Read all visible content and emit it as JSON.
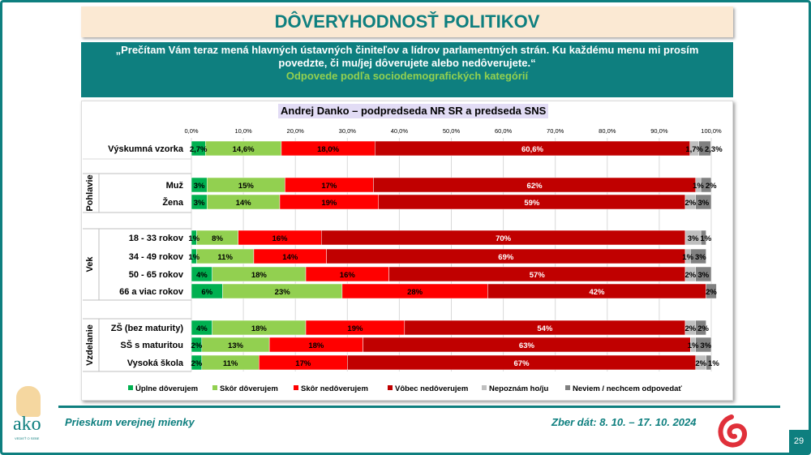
{
  "slide": {
    "title": "DÔVERYHODNOSŤ POLITIKOV",
    "question": "„Prečítam Vám teraz mená hlavných ústavných činiteľov a lídrov parlamentných strán. Ku každému menu mi prosím povedzte, či mu/jej dôverujete alebo nedôverujete.“",
    "subtitle": "Odpovede podľa sociodemografických kategórií",
    "footer_left": "Prieskum verejnej mienky",
    "footer_right": "Zber dát: 8. 10. – 17. 10. 2024",
    "page_number": "29",
    "logo_text": "ako",
    "logo_tagline": "VEDIEŤ O SEBE"
  },
  "chart_data": {
    "type": "bar",
    "orientation": "horizontal",
    "stacked": true,
    "title": "Andrej Danko – podpredseda NR SR a predseda SNS",
    "xlim": [
      0,
      100
    ],
    "xticks": [
      "0,0%",
      "10,0%",
      "20,0%",
      "30,0%",
      "40,0%",
      "50,0%",
      "60,0%",
      "70,0%",
      "80,0%",
      "90,0%",
      "100,0%"
    ],
    "legend_position": "bottom",
    "series": [
      {
        "name": "Úplne dôverujem",
        "color": "#00b050"
      },
      {
        "name": "Skôr dôverujem",
        "color": "#92d050"
      },
      {
        "name": "Skôr nedôverujem",
        "color": "#ff0000"
      },
      {
        "name": "Vôbec nedôverujem",
        "color": "#c00000"
      },
      {
        "name": "Nepoznám ho/ju",
        "color": "#bfbfbf"
      },
      {
        "name": "Neviem / nechcem odpovedať",
        "color": "#808080"
      }
    ],
    "groups": [
      {
        "name": "",
        "rows": [
          {
            "category": "Výskumná vzorka",
            "decimals": 1,
            "values": [
              2.7,
              14.6,
              18.0,
              60.6,
              1.7,
              2.3
            ]
          }
        ]
      },
      {
        "name": "Pohlavie",
        "rows": [
          {
            "category": "Muž",
            "values": [
              3,
              15,
              17,
              62,
              1,
              2
            ]
          },
          {
            "category": "Žena",
            "values": [
              3,
              14,
              19,
              59,
              2,
              3
            ]
          }
        ]
      },
      {
        "name": "Vek",
        "rows": [
          {
            "category": "18 - 33 rokov",
            "values": [
              1,
              8,
              16,
              70,
              3,
              1
            ]
          },
          {
            "category": "34 - 49 rokov",
            "values": [
              1,
              11,
              14,
              69,
              1,
              3
            ]
          },
          {
            "category": "50 - 65 rokov",
            "values": [
              4,
              18,
              16,
              57,
              2,
              3
            ]
          },
          {
            "category": "66 a viac rokov",
            "values": [
              6,
              23,
              28,
              42,
              0,
              2
            ]
          }
        ]
      },
      {
        "name": "Vzdelanie",
        "rows": [
          {
            "category": "ZŠ (bez maturity)",
            "values": [
              4,
              18,
              19,
              54,
              2,
              2
            ]
          },
          {
            "category": "SŠ s maturitou",
            "values": [
              2,
              13,
              18,
              63,
              1,
              3
            ]
          },
          {
            "category": "Vysoká škola",
            "values": [
              2,
              11,
              17,
              67,
              2,
              1
            ]
          }
        ]
      }
    ]
  }
}
